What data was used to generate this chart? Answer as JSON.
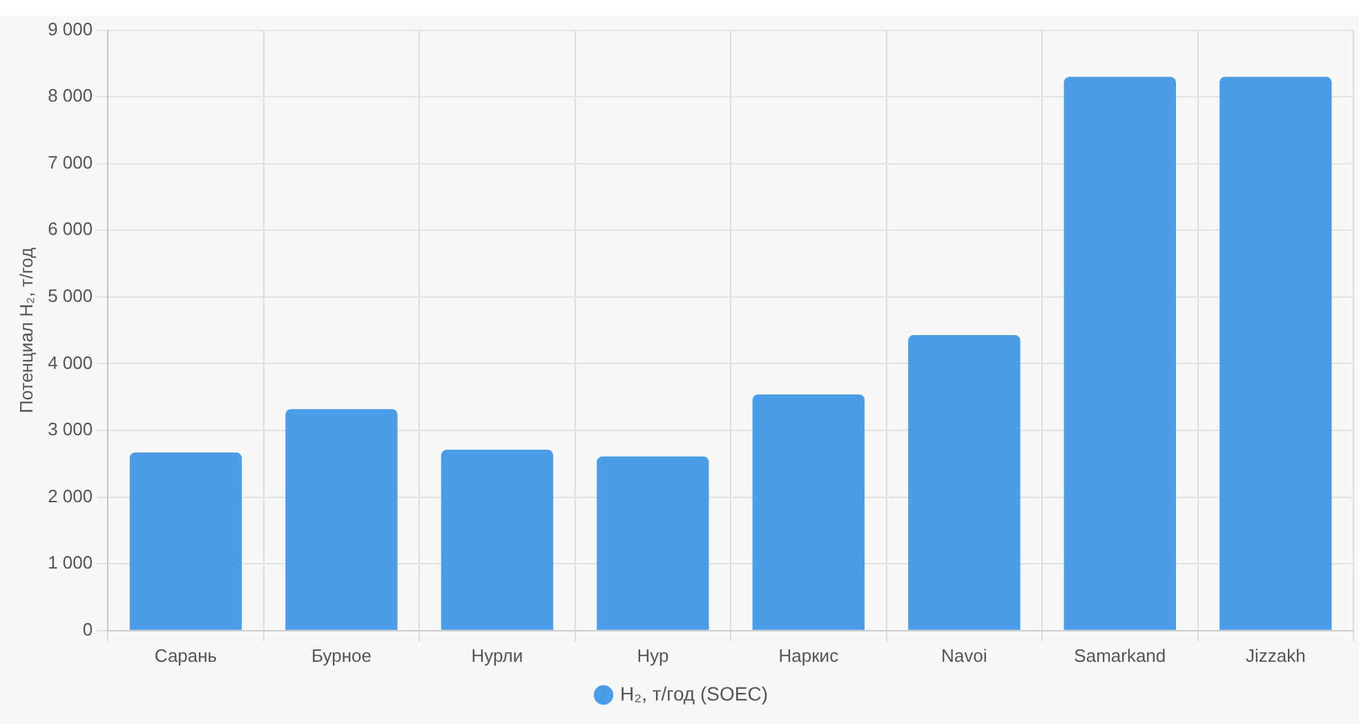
{
  "chart_data": {
    "type": "bar",
    "ylabel": "Потенциал H₂, т/год",
    "categories": [
      "Сарань",
      "Бурное",
      "Нурли",
      "Нур",
      "Наркис",
      "Navoi",
      "Samarkand",
      "Jizzakh"
    ],
    "series": [
      {
        "name": "H₂, т/год (SOEC)",
        "color": "#4a9de6",
        "values": [
          2670,
          3320,
          2710,
          2610,
          3540,
          4430,
          8300,
          8300
        ]
      }
    ],
    "ylim": [
      0,
      9000
    ],
    "yticks": [
      {
        "value": 0,
        "label": "0"
      },
      {
        "value": 1000,
        "label": "1 000"
      },
      {
        "value": 2000,
        "label": "2 000"
      },
      {
        "value": 3000,
        "label": "3 000"
      },
      {
        "value": 4000,
        "label": "4 000"
      },
      {
        "value": 5000,
        "label": "5 000"
      },
      {
        "value": 6000,
        "label": "6 000"
      },
      {
        "value": 7000,
        "label": "7 000"
      },
      {
        "value": 8000,
        "label": "8 000"
      },
      {
        "value": 9000,
        "label": "9 000"
      }
    ],
    "grid": true,
    "legend": "bottom"
  }
}
